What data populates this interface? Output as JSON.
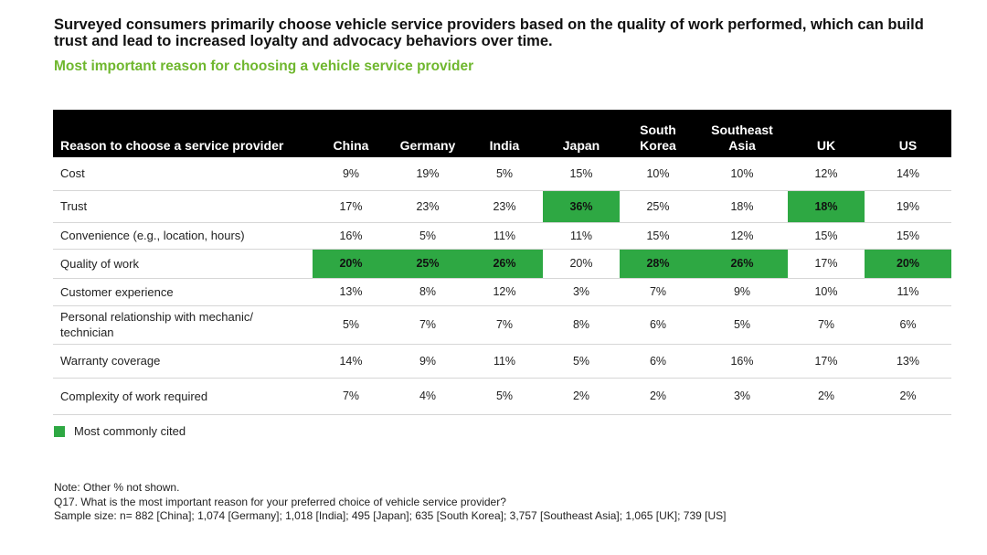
{
  "headline": "Surveyed consumers primarily choose vehicle service providers based on the quality of work performed, which can build trust and lead to increased loyalty and advocacy behaviors over time.",
  "subtitle": "Most important reason for choosing a vehicle service provider",
  "colors": {
    "header_bg": "#000000",
    "highlight": "#2ea843",
    "subtitle": "#6fb72e"
  },
  "chart_data": {
    "type": "table",
    "row_header": "Reason to choose a service provider",
    "columns": [
      "China",
      "Germany",
      "India",
      "Japan",
      "South Korea",
      "Southeast Asia",
      "UK",
      "US"
    ],
    "rows": [
      {
        "label": "Cost",
        "values": [
          "9%",
          "19%",
          "5%",
          "15%",
          "10%",
          "10%",
          "12%",
          "14%"
        ],
        "highlight": [
          false,
          false,
          false,
          false,
          false,
          false,
          false,
          false
        ]
      },
      {
        "label": "Trust",
        "values": [
          "17%",
          "23%",
          "23%",
          "36%",
          "25%",
          "18%",
          "18%",
          "19%"
        ],
        "highlight": [
          false,
          false,
          false,
          true,
          false,
          false,
          true,
          false
        ]
      },
      {
        "label": "Convenience (e.g., location, hours)",
        "values": [
          "16%",
          "5%",
          "11%",
          "11%",
          "15%",
          "12%",
          "15%",
          "15%"
        ],
        "highlight": [
          false,
          false,
          false,
          false,
          false,
          false,
          false,
          false
        ]
      },
      {
        "label": "Quality of work",
        "values": [
          "20%",
          "25%",
          "26%",
          "20%",
          "28%",
          "26%",
          "17%",
          "20%"
        ],
        "highlight": [
          true,
          true,
          true,
          false,
          true,
          true,
          false,
          true
        ]
      },
      {
        "label": "Customer experience",
        "values": [
          "13%",
          "8%",
          "12%",
          "3%",
          "7%",
          "9%",
          "10%",
          "11%"
        ],
        "highlight": [
          false,
          false,
          false,
          false,
          false,
          false,
          false,
          false
        ]
      },
      {
        "label": "Personal relationship with mechanic/ technician",
        "values": [
          "5%",
          "7%",
          "7%",
          "8%",
          "6%",
          "5%",
          "7%",
          "6%"
        ],
        "highlight": [
          false,
          false,
          false,
          false,
          false,
          false,
          false,
          false
        ]
      },
      {
        "label": "Warranty coverage",
        "values": [
          "14%",
          "9%",
          "11%",
          "5%",
          "6%",
          "16%",
          "17%",
          "13%"
        ],
        "highlight": [
          false,
          false,
          false,
          false,
          false,
          false,
          false,
          false
        ]
      },
      {
        "label": "Complexity of work required",
        "values": [
          "7%",
          "4%",
          "5%",
          "2%",
          "2%",
          "3%",
          "2%",
          "2%"
        ],
        "highlight": [
          false,
          false,
          false,
          false,
          false,
          false,
          false,
          false
        ]
      }
    ]
  },
  "legend": {
    "label": "Most commonly cited"
  },
  "notes": [
    "Note: Other % not shown.",
    "Q17. What is the most important reason for your preferred choice of vehicle service provider?",
    "Sample size: n= 882 [China]; 1,074 [Germany]; 1,018 [India]; 495 [Japan]; 635 [South Korea]; 3,757 [Southeast Asia]; 1,065 [UK]; 739 [US]"
  ]
}
